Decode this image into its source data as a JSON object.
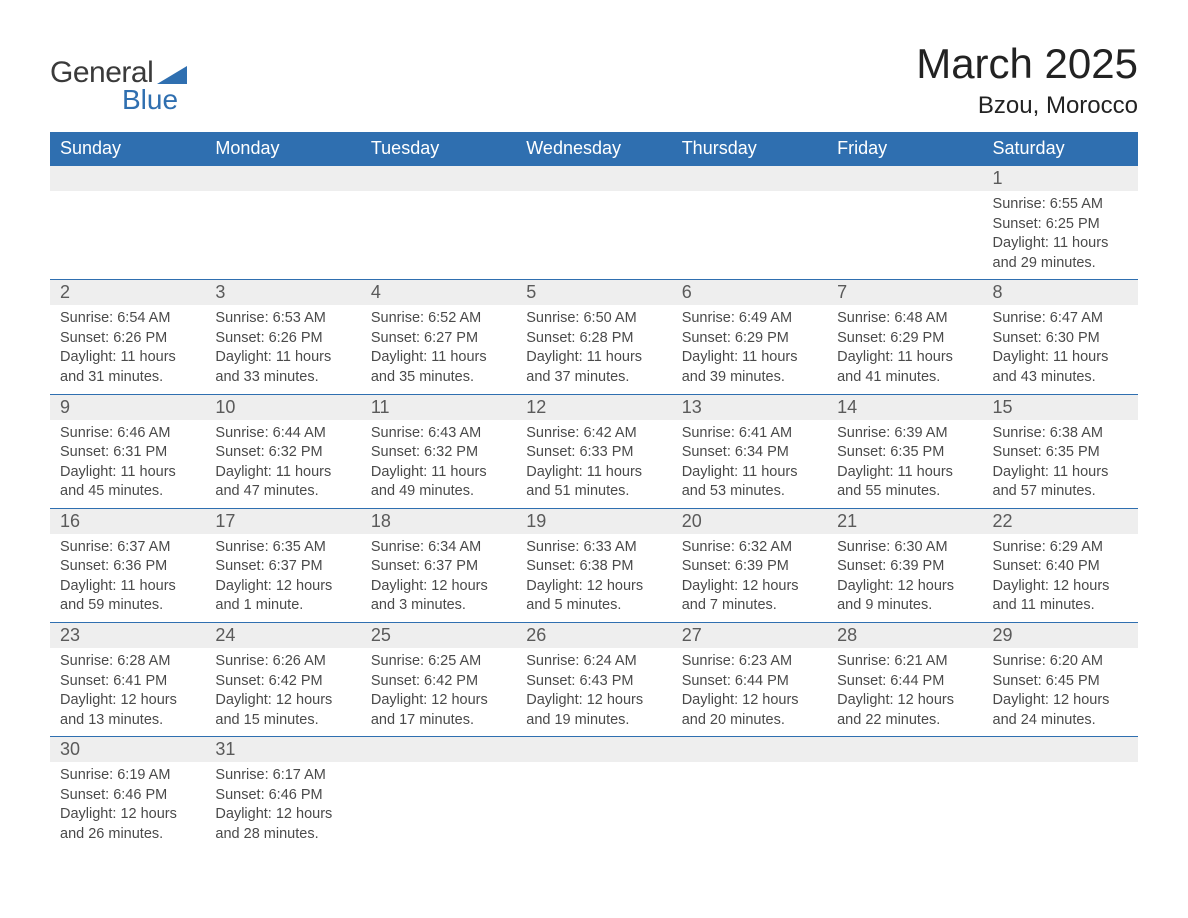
{
  "logo": {
    "text1": "General",
    "text2": "Blue"
  },
  "header": {
    "title": "March 2025",
    "subtitle": "Bzou, Morocco"
  },
  "colors": {
    "brand": "#2f6fb0",
    "header_bg": "#2f6fb0",
    "header_text": "#ffffff",
    "daynum_bg": "#eeeeee",
    "body_text": "#4a4a4a",
    "row_divider": "#2f6fb0"
  },
  "daysOfWeek": [
    "Sunday",
    "Monday",
    "Tuesday",
    "Wednesday",
    "Thursday",
    "Friday",
    "Saturday"
  ],
  "weeks": [
    [
      null,
      null,
      null,
      null,
      null,
      null,
      {
        "n": "1",
        "sr": "Sunrise: 6:55 AM",
        "ss": "Sunset: 6:25 PM",
        "d1": "Daylight: 11 hours",
        "d2": "and 29 minutes."
      }
    ],
    [
      {
        "n": "2",
        "sr": "Sunrise: 6:54 AM",
        "ss": "Sunset: 6:26 PM",
        "d1": "Daylight: 11 hours",
        "d2": "and 31 minutes."
      },
      {
        "n": "3",
        "sr": "Sunrise: 6:53 AM",
        "ss": "Sunset: 6:26 PM",
        "d1": "Daylight: 11 hours",
        "d2": "and 33 minutes."
      },
      {
        "n": "4",
        "sr": "Sunrise: 6:52 AM",
        "ss": "Sunset: 6:27 PM",
        "d1": "Daylight: 11 hours",
        "d2": "and 35 minutes."
      },
      {
        "n": "5",
        "sr": "Sunrise: 6:50 AM",
        "ss": "Sunset: 6:28 PM",
        "d1": "Daylight: 11 hours",
        "d2": "and 37 minutes."
      },
      {
        "n": "6",
        "sr": "Sunrise: 6:49 AM",
        "ss": "Sunset: 6:29 PM",
        "d1": "Daylight: 11 hours",
        "d2": "and 39 minutes."
      },
      {
        "n": "7",
        "sr": "Sunrise: 6:48 AM",
        "ss": "Sunset: 6:29 PM",
        "d1": "Daylight: 11 hours",
        "d2": "and 41 minutes."
      },
      {
        "n": "8",
        "sr": "Sunrise: 6:47 AM",
        "ss": "Sunset: 6:30 PM",
        "d1": "Daylight: 11 hours",
        "d2": "and 43 minutes."
      }
    ],
    [
      {
        "n": "9",
        "sr": "Sunrise: 6:46 AM",
        "ss": "Sunset: 6:31 PM",
        "d1": "Daylight: 11 hours",
        "d2": "and 45 minutes."
      },
      {
        "n": "10",
        "sr": "Sunrise: 6:44 AM",
        "ss": "Sunset: 6:32 PM",
        "d1": "Daylight: 11 hours",
        "d2": "and 47 minutes."
      },
      {
        "n": "11",
        "sr": "Sunrise: 6:43 AM",
        "ss": "Sunset: 6:32 PM",
        "d1": "Daylight: 11 hours",
        "d2": "and 49 minutes."
      },
      {
        "n": "12",
        "sr": "Sunrise: 6:42 AM",
        "ss": "Sunset: 6:33 PM",
        "d1": "Daylight: 11 hours",
        "d2": "and 51 minutes."
      },
      {
        "n": "13",
        "sr": "Sunrise: 6:41 AM",
        "ss": "Sunset: 6:34 PM",
        "d1": "Daylight: 11 hours",
        "d2": "and 53 minutes."
      },
      {
        "n": "14",
        "sr": "Sunrise: 6:39 AM",
        "ss": "Sunset: 6:35 PM",
        "d1": "Daylight: 11 hours",
        "d2": "and 55 minutes."
      },
      {
        "n": "15",
        "sr": "Sunrise: 6:38 AM",
        "ss": "Sunset: 6:35 PM",
        "d1": "Daylight: 11 hours",
        "d2": "and 57 minutes."
      }
    ],
    [
      {
        "n": "16",
        "sr": "Sunrise: 6:37 AM",
        "ss": "Sunset: 6:36 PM",
        "d1": "Daylight: 11 hours",
        "d2": "and 59 minutes."
      },
      {
        "n": "17",
        "sr": "Sunrise: 6:35 AM",
        "ss": "Sunset: 6:37 PM",
        "d1": "Daylight: 12 hours",
        "d2": "and 1 minute."
      },
      {
        "n": "18",
        "sr": "Sunrise: 6:34 AM",
        "ss": "Sunset: 6:37 PM",
        "d1": "Daylight: 12 hours",
        "d2": "and 3 minutes."
      },
      {
        "n": "19",
        "sr": "Sunrise: 6:33 AM",
        "ss": "Sunset: 6:38 PM",
        "d1": "Daylight: 12 hours",
        "d2": "and 5 minutes."
      },
      {
        "n": "20",
        "sr": "Sunrise: 6:32 AM",
        "ss": "Sunset: 6:39 PM",
        "d1": "Daylight: 12 hours",
        "d2": "and 7 minutes."
      },
      {
        "n": "21",
        "sr": "Sunrise: 6:30 AM",
        "ss": "Sunset: 6:39 PM",
        "d1": "Daylight: 12 hours",
        "d2": "and 9 minutes."
      },
      {
        "n": "22",
        "sr": "Sunrise: 6:29 AM",
        "ss": "Sunset: 6:40 PM",
        "d1": "Daylight: 12 hours",
        "d2": "and 11 minutes."
      }
    ],
    [
      {
        "n": "23",
        "sr": "Sunrise: 6:28 AM",
        "ss": "Sunset: 6:41 PM",
        "d1": "Daylight: 12 hours",
        "d2": "and 13 minutes."
      },
      {
        "n": "24",
        "sr": "Sunrise: 6:26 AM",
        "ss": "Sunset: 6:42 PM",
        "d1": "Daylight: 12 hours",
        "d2": "and 15 minutes."
      },
      {
        "n": "25",
        "sr": "Sunrise: 6:25 AM",
        "ss": "Sunset: 6:42 PM",
        "d1": "Daylight: 12 hours",
        "d2": "and 17 minutes."
      },
      {
        "n": "26",
        "sr": "Sunrise: 6:24 AM",
        "ss": "Sunset: 6:43 PM",
        "d1": "Daylight: 12 hours",
        "d2": "and 19 minutes."
      },
      {
        "n": "27",
        "sr": "Sunrise: 6:23 AM",
        "ss": "Sunset: 6:44 PM",
        "d1": "Daylight: 12 hours",
        "d2": "and 20 minutes."
      },
      {
        "n": "28",
        "sr": "Sunrise: 6:21 AM",
        "ss": "Sunset: 6:44 PM",
        "d1": "Daylight: 12 hours",
        "d2": "and 22 minutes."
      },
      {
        "n": "29",
        "sr": "Sunrise: 6:20 AM",
        "ss": "Sunset: 6:45 PM",
        "d1": "Daylight: 12 hours",
        "d2": "and 24 minutes."
      }
    ],
    [
      {
        "n": "30",
        "sr": "Sunrise: 6:19 AM",
        "ss": "Sunset: 6:46 PM",
        "d1": "Daylight: 12 hours",
        "d2": "and 26 minutes."
      },
      {
        "n": "31",
        "sr": "Sunrise: 6:17 AM",
        "ss": "Sunset: 6:46 PM",
        "d1": "Daylight: 12 hours",
        "d2": "and 28 minutes."
      },
      null,
      null,
      null,
      null,
      null
    ]
  ]
}
